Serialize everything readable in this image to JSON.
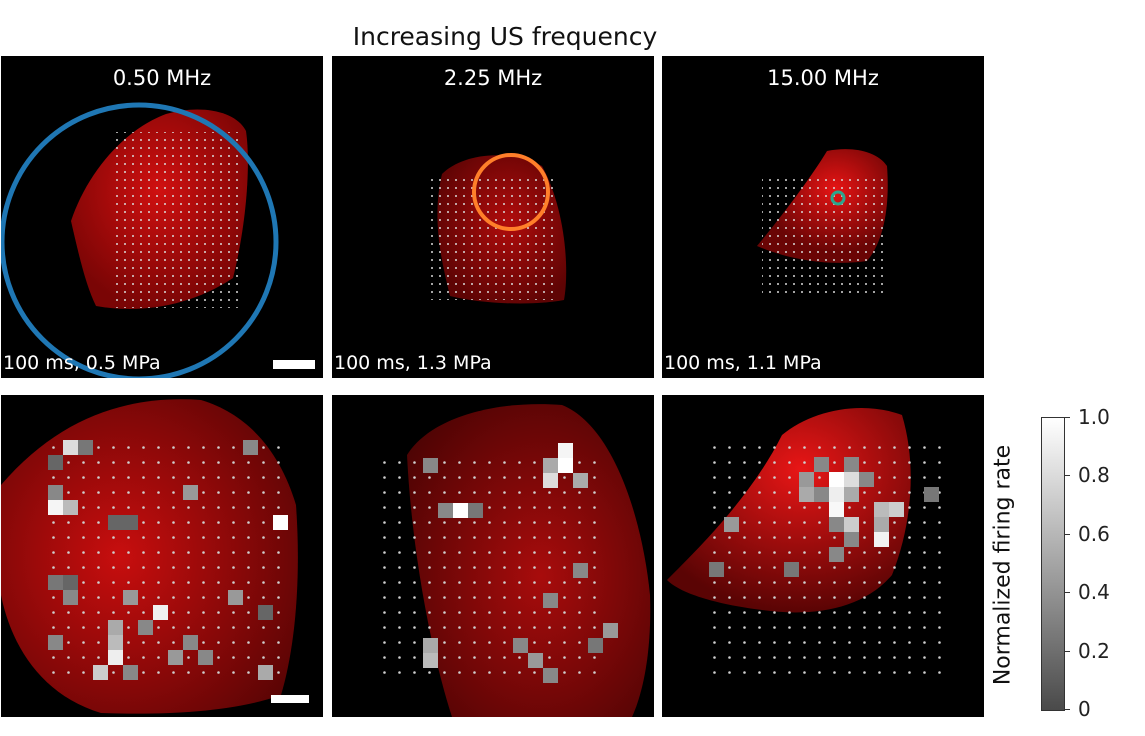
{
  "title": "Increasing US frequency",
  "top_row": [
    {
      "frequency": "0.50 MHz",
      "condition": "100 ms, 0.5 MPa",
      "focal_circle_color": "#1f77b4"
    },
    {
      "frequency": "2.25 MHz",
      "condition": "100 ms, 1.3 MPa",
      "focal_circle_color": "#ff7f2a"
    },
    {
      "frequency": "15.00 MHz",
      "condition": "100 ms, 1.1 MPa",
      "focal_circle_color": "#2ca58d"
    }
  ],
  "colorbar": {
    "label": "Normalized firing rate",
    "ticks": [
      "1.0",
      "0.8",
      "0.6",
      "0.4",
      "0.2",
      "0"
    ],
    "range": [
      0,
      1
    ],
    "colors": [
      "#4a4a4a",
      "#ffffff"
    ]
  },
  "tissue_color": "#e01010"
}
